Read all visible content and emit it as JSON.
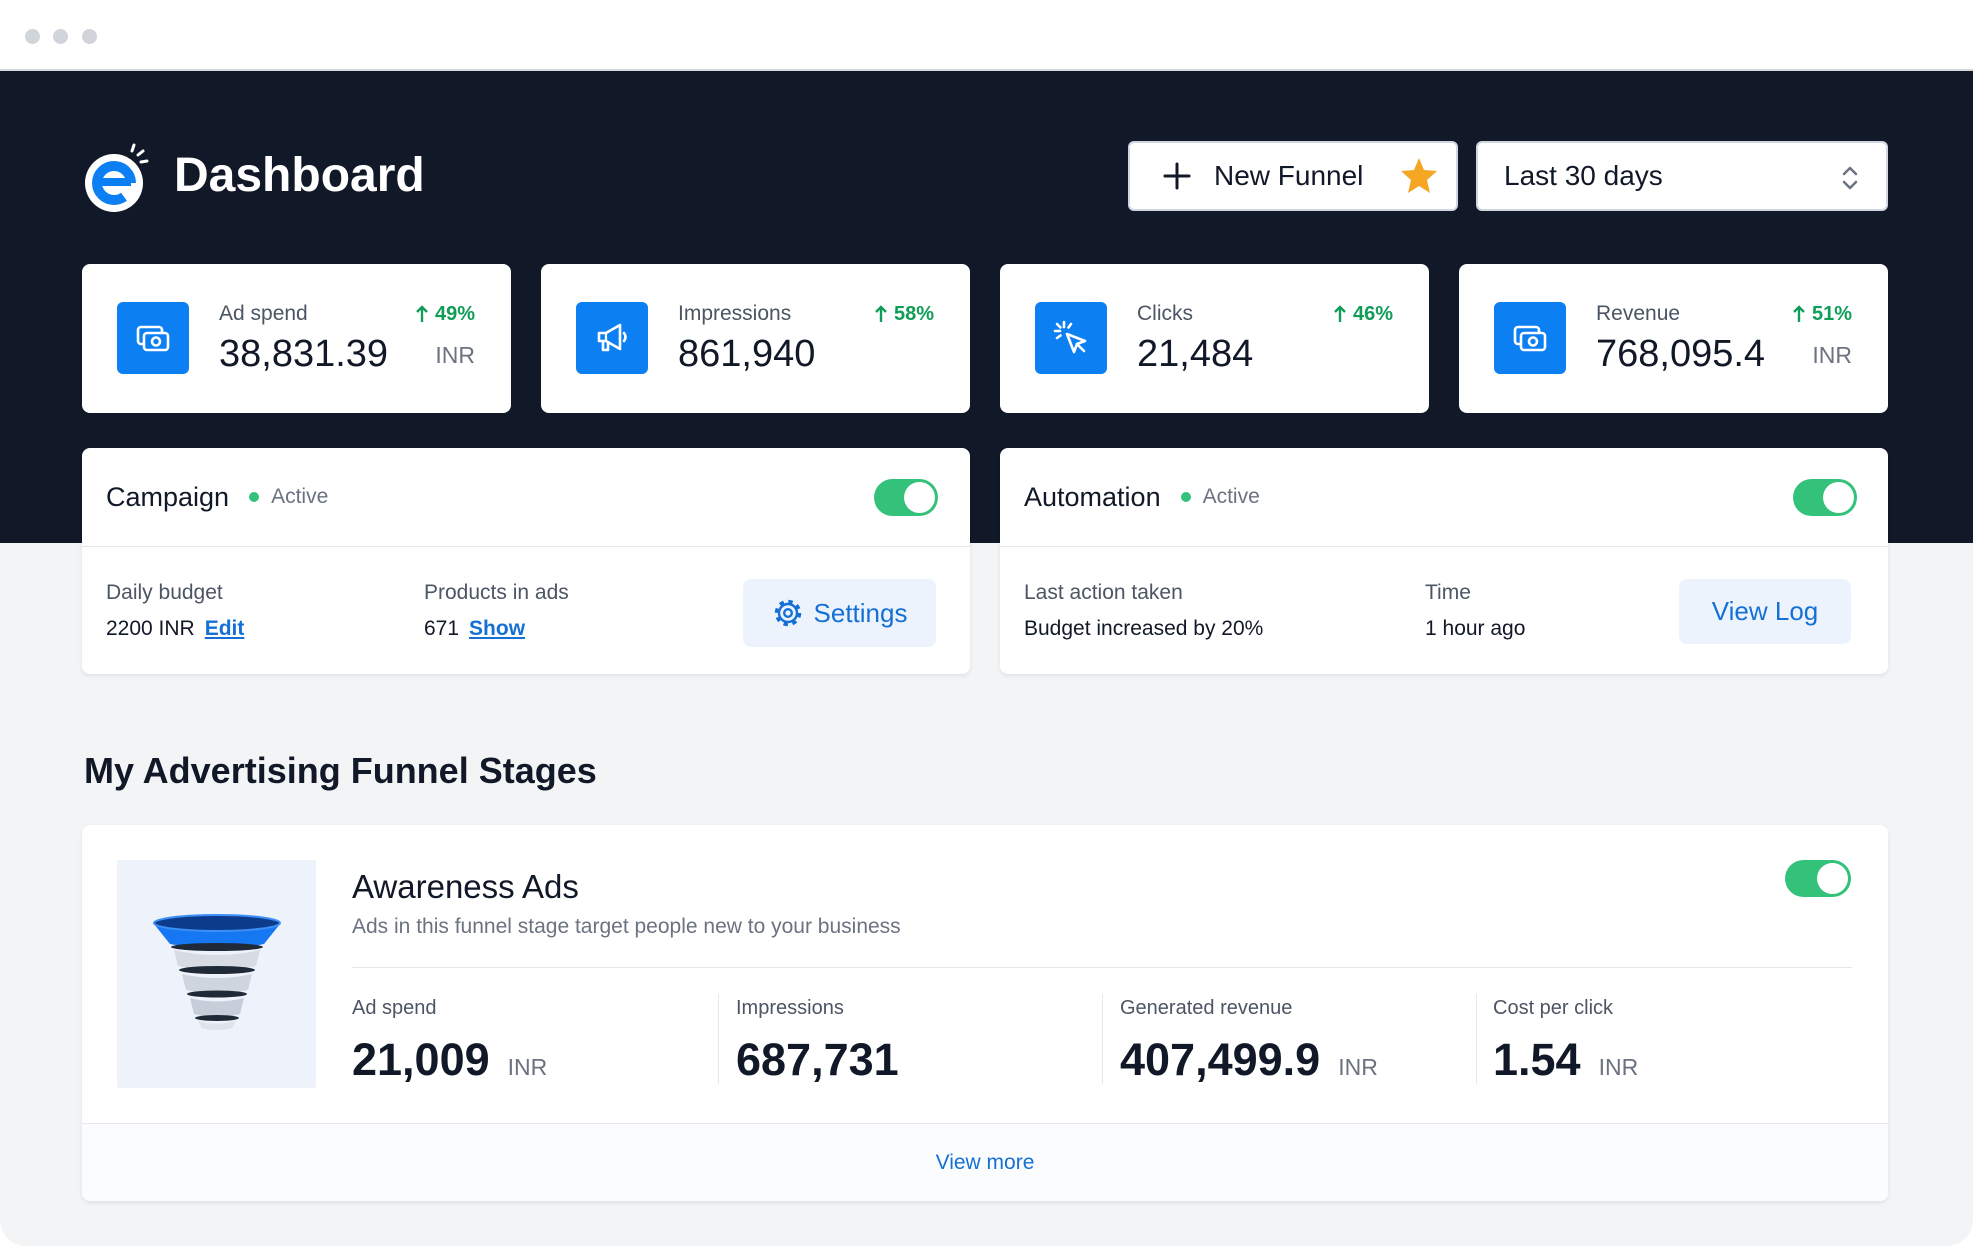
{
  "colors": {
    "header_bg": "#111827",
    "page_bg": "#f3f4f6",
    "accent": "#0c7ff2",
    "positive": "#0f9d58",
    "toggle_on": "#34c27a",
    "link": "#1570d6",
    "star": "#f5a623"
  },
  "header": {
    "logo_icon": "brand-e-logo-icon",
    "title": "Dashboard",
    "new_funnel_label": "New Funnel",
    "date_range": {
      "selected": "Last 30 days"
    }
  },
  "stats": [
    {
      "label": "Ad spend",
      "value": "38,831.39",
      "unit": "INR",
      "change": "49%",
      "icon": "money-icon"
    },
    {
      "label": "Impressions",
      "value": "861,940",
      "change": "58%",
      "icon": "megaphone-icon"
    },
    {
      "label": "Clicks",
      "value": "21,484",
      "change": "46%",
      "icon": "cursor-click-icon"
    },
    {
      "label": "Revenue",
      "value": "768,095.4",
      "unit": "INR",
      "change": "51%",
      "icon": "money-icon"
    }
  ],
  "campaign": {
    "title": "Campaign",
    "status": "Active",
    "enabled": true,
    "fields": [
      {
        "label": "Daily budget",
        "value": "2200 INR",
        "action": "Edit"
      },
      {
        "label": "Products in ads",
        "value": "671",
        "action": "Show"
      }
    ],
    "settings_label": "Settings"
  },
  "automation": {
    "title": "Automation",
    "status": "Active",
    "enabled": true,
    "fields": [
      {
        "label": "Last action taken",
        "value": "Budget increased by 20%"
      },
      {
        "label": "Time",
        "value": "1 hour ago"
      }
    ],
    "view_log_label": "View Log"
  },
  "funnel_section": {
    "heading": "My Advertising Funnel Stages",
    "stages": [
      {
        "title": "Awareness Ads",
        "description": "Ads in this funnel stage target people new to your business",
        "enabled": true,
        "image": "funnel-icon",
        "metrics": [
          {
            "label": "Ad spend",
            "value": "21,009",
            "unit": "INR"
          },
          {
            "label": "Impressions",
            "value": "687,731"
          },
          {
            "label": "Generated revenue",
            "value": "407,499.9",
            "unit": "INR"
          },
          {
            "label": "Cost per click",
            "value": "1.54",
            "unit": "INR"
          }
        ],
        "view_more_label": "View more"
      }
    ]
  }
}
